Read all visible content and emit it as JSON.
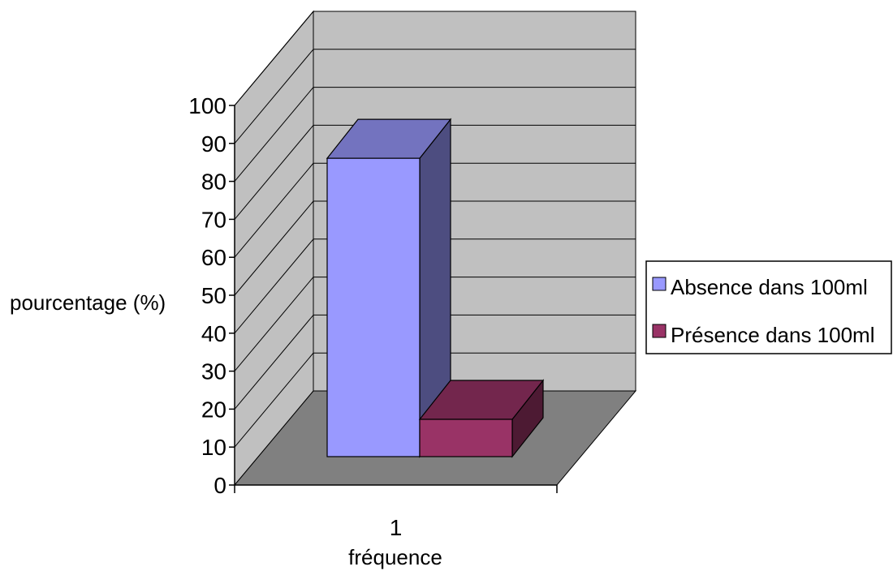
{
  "chart_data": {
    "type": "bar",
    "style": "3d-column",
    "categories": [
      "1"
    ],
    "series": [
      {
        "name": "Absence dans 100ml",
        "values": [
          88
        ],
        "color": "#9999ff"
      },
      {
        "name": "Présence dans 100ml",
        "values": [
          11
        ],
        "color": "#993366"
      }
    ],
    "xlabel": "fréquence",
    "ylabel": "pourcentage (%)",
    "ylim": [
      0,
      100
    ],
    "yticks": [
      "0",
      "10",
      "20",
      "30",
      "40",
      "50",
      "60",
      "70",
      "80",
      "90",
      "100"
    ],
    "grid": true,
    "legend_position": "right",
    "wall_color": "#c0c0c0",
    "floor_color": "#808080"
  }
}
